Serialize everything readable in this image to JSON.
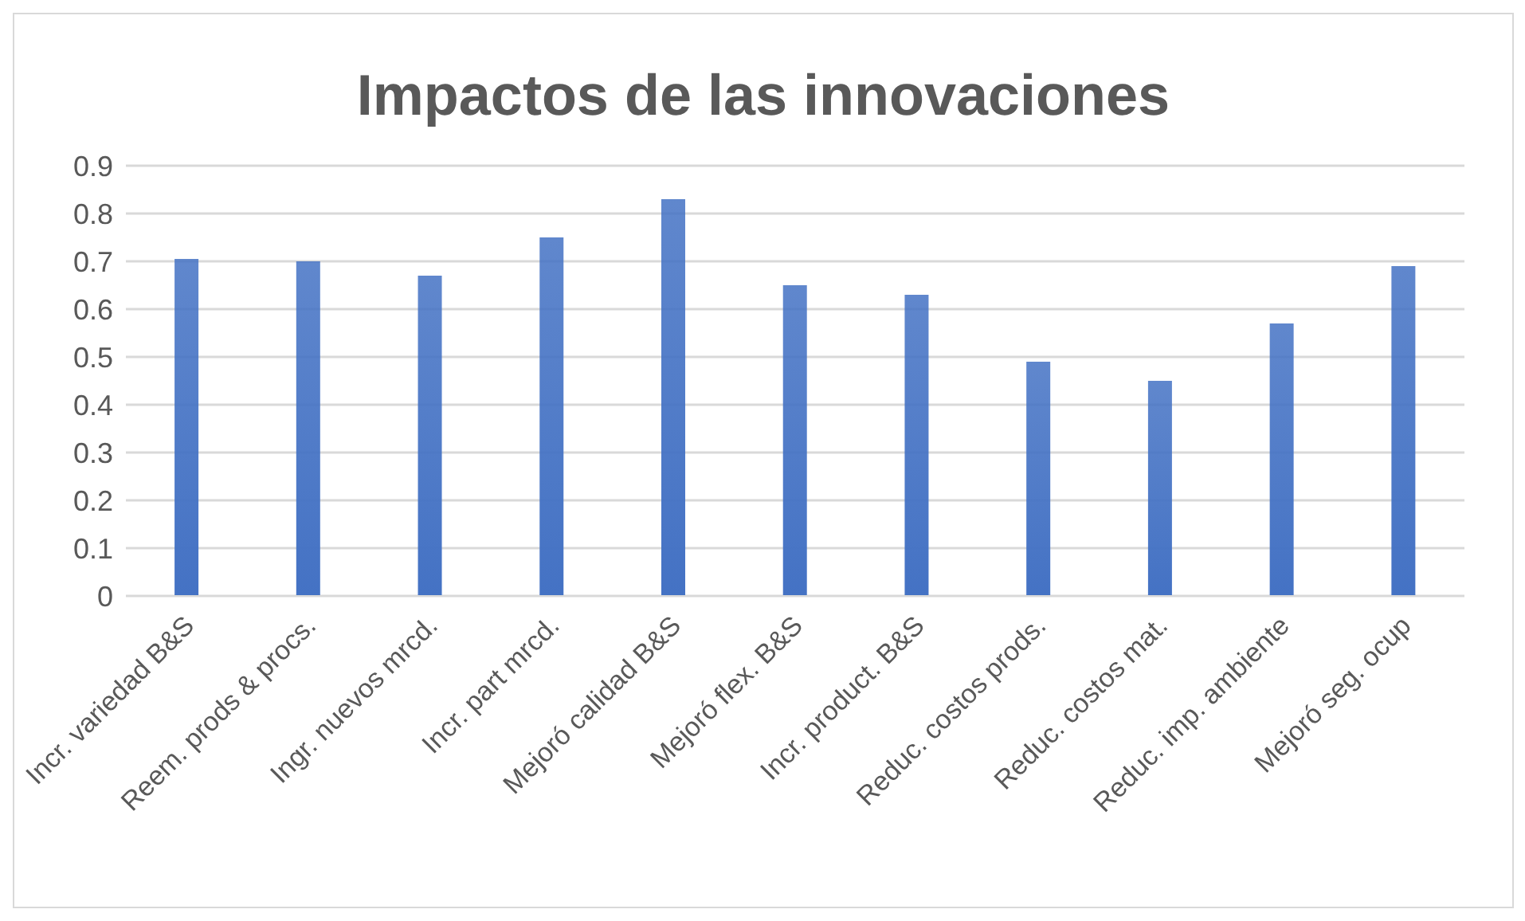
{
  "chart_data": {
    "type": "bar",
    "title": "Impactos de las innovaciones",
    "categories": [
      "Incr. variedad B&S",
      "Reem. prods & procs.",
      "Ingr. nuevos mrcd.",
      "Incr. part mrcd.",
      "Mejoró calidad B&S",
      "Mejoró flex. B&S",
      "Incr. product. B&S",
      "Reduc. costos prods.",
      "Reduc. costos mat.",
      "Reduc. imp. ambiente",
      "Mejoró seg. ocup"
    ],
    "values": [
      0.705,
      0.7,
      0.67,
      0.75,
      0.83,
      0.65,
      0.63,
      0.49,
      0.45,
      0.57,
      0.69
    ],
    "color": "#4472c4",
    "ylim": [
      0,
      0.9
    ],
    "yticks": [
      0,
      0.1,
      0.2,
      0.3,
      0.4,
      0.5,
      0.6,
      0.7,
      0.8,
      0.9
    ],
    "grid": "y"
  }
}
